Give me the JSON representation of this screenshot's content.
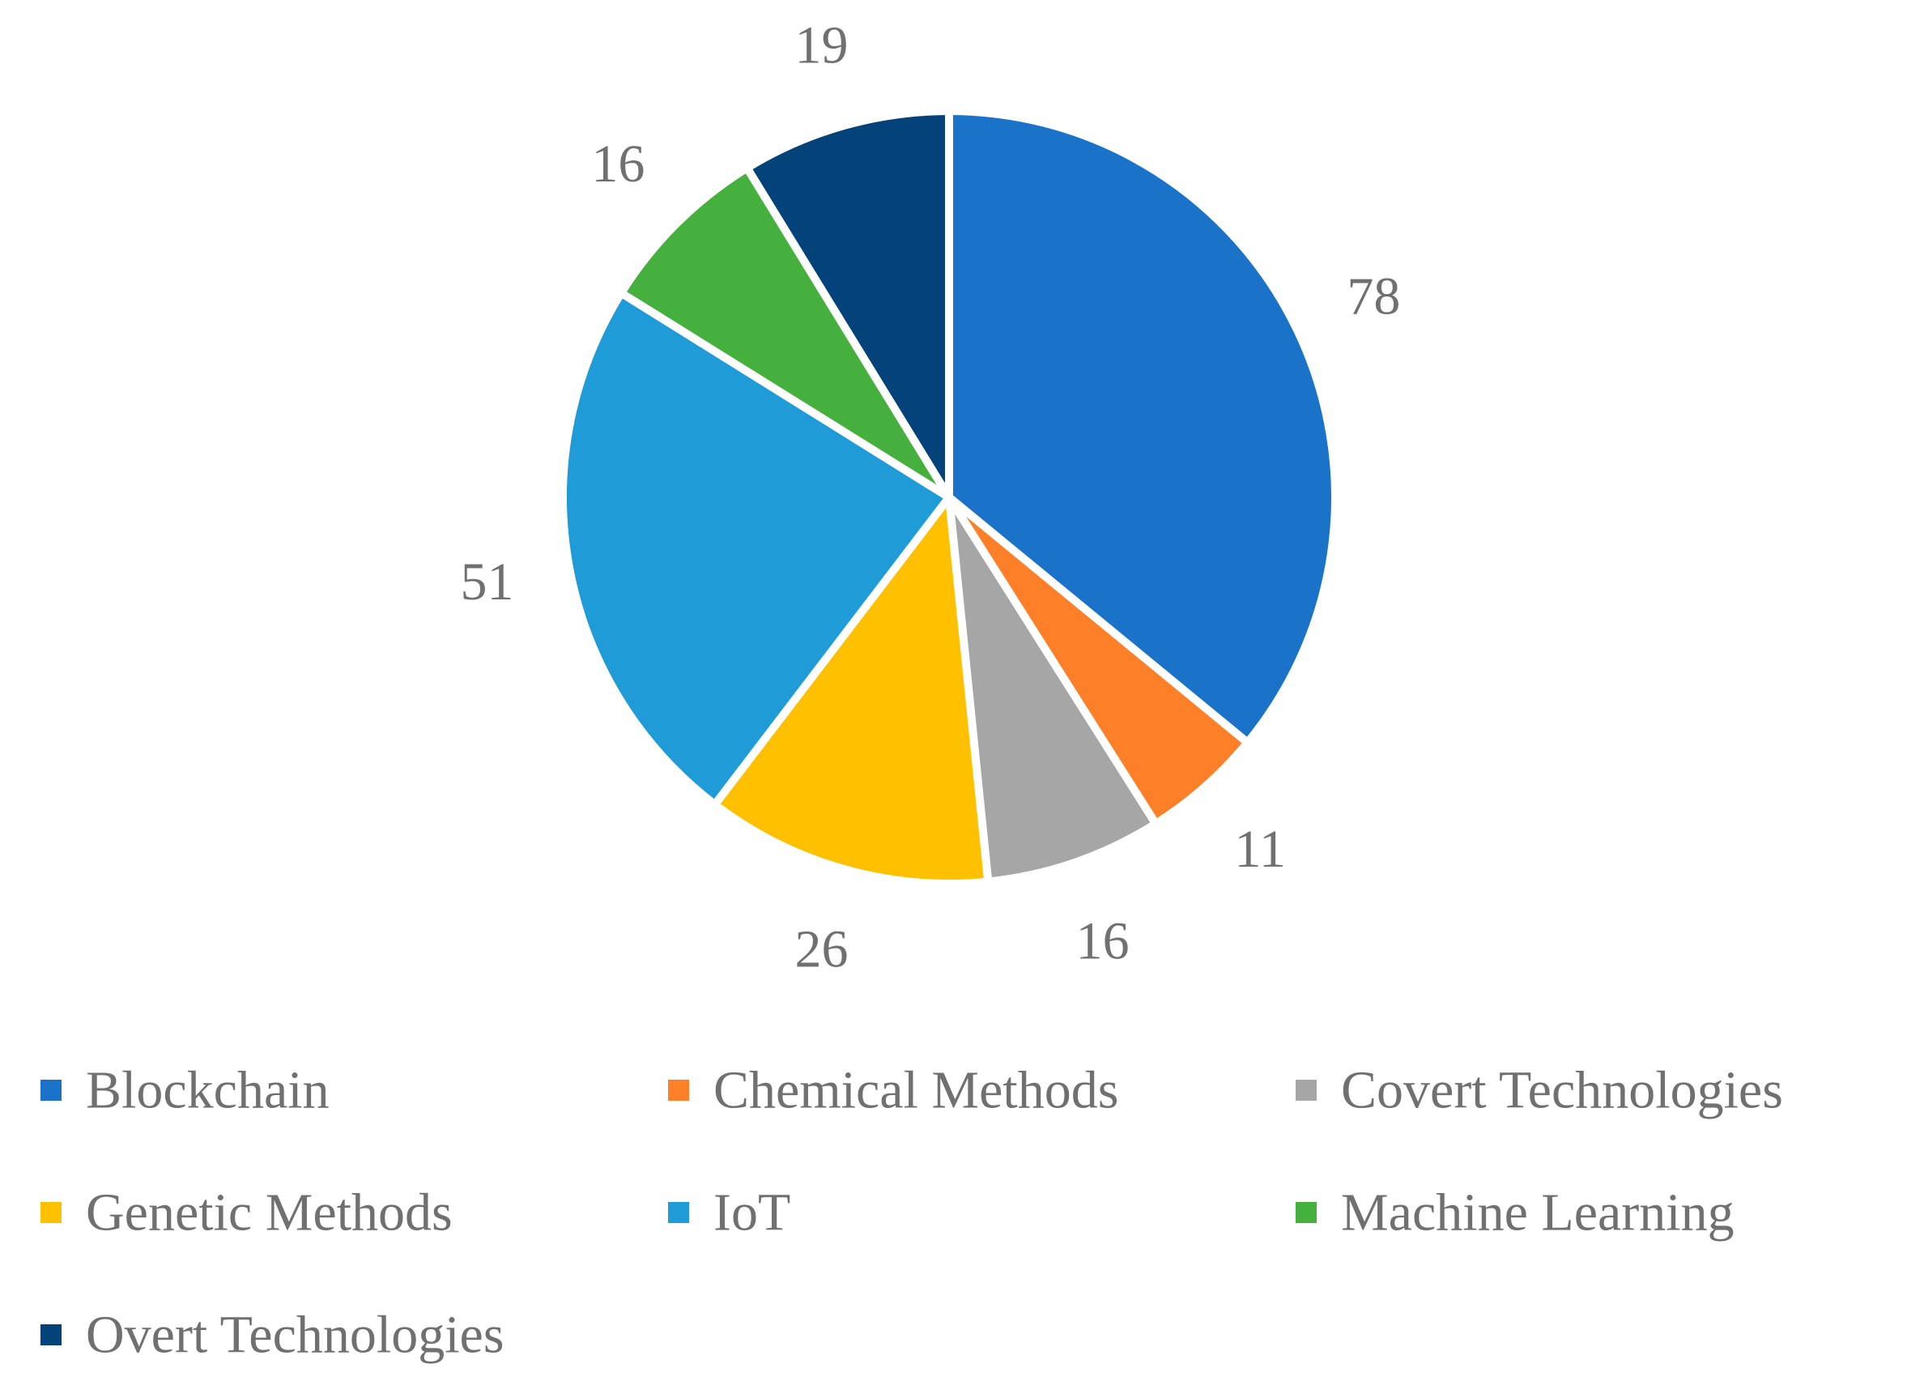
{
  "chart_data": {
    "type": "pie",
    "title": "",
    "categories": [
      "Blockchain",
      "Chemical Methods",
      "Covert Technologies",
      "Genetic Methods",
      "IoT",
      "Machine Learning",
      "Overt Technologies"
    ],
    "values": [
      78,
      11,
      16,
      26,
      51,
      16,
      19
    ],
    "colors": [
      "#1A73C8",
      "#FD7F28",
      "#A6A6A6",
      "#FFC000",
      "#1F9CD8",
      "#46B03E",
      "#044379"
    ],
    "data_labels": [
      "78",
      "11",
      "16",
      "26",
      "51",
      "16",
      "19"
    ],
    "legend_position": "bottom",
    "start_direction": "12 o'clock",
    "order": "clockwise"
  }
}
